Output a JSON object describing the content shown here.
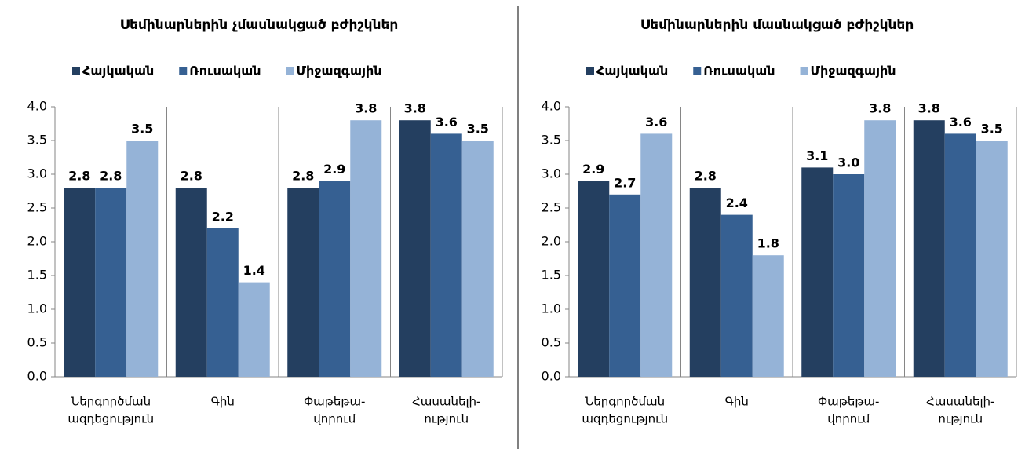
{
  "chart_data": [
    {
      "type": "bar",
      "title": "Սեմինարներին չմասնակցած բժիշկներ",
      "categories": [
        [
          "Ներգործման",
          "ազդեցություն"
        ],
        [
          "Գին"
        ],
        [
          "Փաթեթա-",
          "վորում"
        ],
        [
          "Հասանելի-",
          "ություն"
        ]
      ],
      "series": [
        {
          "name": "Հայկական",
          "color": "#243f60",
          "values": [
            2.8,
            2.8,
            2.8,
            3.8
          ]
        },
        {
          "name": "Ռուսական",
          "color": "#366092",
          "values": [
            2.8,
            2.2,
            2.9,
            3.6
          ]
        },
        {
          "name": "Միջազգային",
          "color": "#95b3d7",
          "values": [
            3.5,
            1.4,
            3.8,
            3.5
          ]
        }
      ],
      "ylim": [
        0,
        4
      ],
      "yticks": [
        {
          "value": 0,
          "label": "0.0"
        },
        0.5,
        {
          "value": 1,
          "label": "1.0"
        },
        1.5,
        {
          "value": 2,
          "label": "2.0"
        },
        2.5,
        {
          "value": 3,
          "label": "3.0"
        },
        3.5,
        {
          "value": 4,
          "label": "4.0"
        }
      ],
      "legend": "top"
    },
    {
      "type": "bar",
      "title": "Սեմինարներին մասնակցած բժիշկներ",
      "categories": [
        [
          "Ներգործման",
          "ազդեցություն"
        ],
        [
          "Գին"
        ],
        [
          "Փաթեթա-",
          "վորում"
        ],
        [
          "Հասանելի-",
          "ություն"
        ]
      ],
      "series": [
        {
          "name": "Հայկական",
          "color": "#243f60",
          "values": [
            2.9,
            2.8,
            3.1,
            3.8
          ]
        },
        {
          "name": "Ռուսական",
          "color": "#366092",
          "values": [
            2.7,
            2.4,
            3,
            3.6
          ],
          "value_labels": [
            "2.7",
            "2.4",
            "3.0",
            "3.6"
          ]
        },
        {
          "name": "Միջազգային",
          "color": "#95b3d7",
          "values": [
            3.6,
            1.8,
            3.8,
            3.5
          ]
        }
      ],
      "ylim": [
        0,
        4
      ],
      "yticks": [
        {
          "value": 0,
          "label": "0.0"
        },
        0.5,
        {
          "value": 1,
          "label": "1.0"
        },
        1.5,
        {
          "value": 2,
          "label": "2.0"
        },
        2.5,
        {
          "value": 3,
          "label": "3.0"
        },
        3.5,
        {
          "value": 4,
          "label": "4.0"
        }
      ],
      "legend": "top"
    }
  ]
}
